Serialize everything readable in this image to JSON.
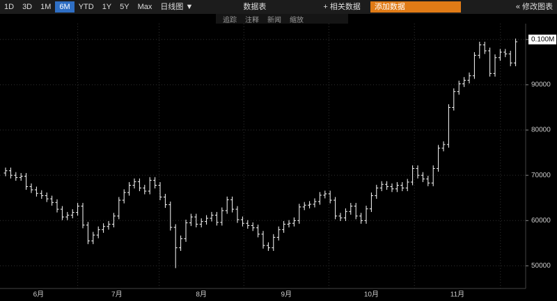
{
  "toolbar": {
    "ranges": [
      "1D",
      "3D",
      "1M",
      "6M",
      "YTD",
      "1Y",
      "5Y",
      "Max"
    ],
    "active_range": 3,
    "chart_style": "日线图 ▼",
    "table": "数据表",
    "related": "+ 相关数据",
    "add_data": "添加数据",
    "edit": "« 修改图表",
    "tools": [
      "追踪",
      "注释",
      "新闻",
      "缩放"
    ]
  },
  "chart_data": {
    "type": "ohlc",
    "color": "#ffffff",
    "open": [
      70500,
      71000,
      70000,
      69500,
      69800,
      67500,
      66800,
      66000,
      65500,
      64800,
      64000,
      62500,
      60800,
      61200,
      61800,
      63200,
      59000,
      55500,
      56800,
      58000,
      58700,
      59200,
      61000,
      64500,
      66200,
      67800,
      68600,
      67200,
      66500,
      68900,
      67800,
      65200,
      63500,
      58500,
      54000,
      56000,
      59500,
      60800,
      59200,
      59800,
      60500,
      61200,
      59600,
      62200,
      64600,
      62500,
      60200,
      59400,
      58900,
      58400,
      57000,
      54500,
      54000,
      56300,
      58000,
      59200,
      59400,
      60000,
      63000,
      63400,
      63600,
      64200,
      65600,
      65900,
      64500,
      61000,
      60600,
      62000,
      63200,
      61000,
      60000,
      62600,
      65500,
      67200,
      68000,
      67500,
      67000,
      67800,
      67200,
      68500,
      71500,
      70000,
      69200,
      68300,
      71500,
      76000,
      76800,
      85000,
      88500,
      90200,
      91000,
      92000,
      96500,
      98800,
      97500,
      92500,
      96000,
      97200,
      96800,
      94800
    ],
    "high": [
      71700,
      71700,
      70700,
      70500,
      70500,
      68200,
      67500,
      66700,
      66200,
      65500,
      64700,
      63200,
      61900,
      62500,
      63900,
      63900,
      59700,
      57500,
      58700,
      59400,
      59900,
      61700,
      65200,
      66900,
      68500,
      69300,
      69300,
      67900,
      69600,
      69600,
      68500,
      65900,
      64200,
      59200,
      56700,
      60200,
      61500,
      61500,
      60500,
      61200,
      61900,
      61900,
      62900,
      65300,
      65300,
      63200,
      60900,
      60100,
      59600,
      59100,
      57700,
      55200,
      57000,
      58700,
      59900,
      60100,
      60700,
      63700,
      64100,
      64300,
      64900,
      66300,
      66600,
      66600,
      65200,
      61700,
      62700,
      63900,
      63900,
      61700,
      63300,
      66200,
      67900,
      68700,
      68700,
      68200,
      68500,
      68500,
      69200,
      72200,
      72200,
      70700,
      69900,
      72200,
      76700,
      77500,
      85700,
      89200,
      90900,
      91700,
      92700,
      97200,
      99500,
      99500,
      98200,
      96700,
      97900,
      97900,
      97500,
      100200
    ],
    "low": [
      69800,
      69300,
      68800,
      68800,
      66800,
      66100,
      65300,
      64800,
      64100,
      63300,
      61800,
      60100,
      60100,
      60500,
      61100,
      58300,
      54800,
      54800,
      56100,
      57300,
      58000,
      58500,
      60300,
      63800,
      65500,
      67100,
      66500,
      65800,
      65800,
      67100,
      64500,
      62800,
      57800,
      49500,
      53300,
      55300,
      58800,
      58500,
      58500,
      59100,
      59800,
      58900,
      58900,
      61500,
      61800,
      59500,
      58700,
      58200,
      57700,
      56300,
      53800,
      53300,
      53300,
      55600,
      57300,
      58500,
      58700,
      59300,
      62300,
      62700,
      62900,
      63500,
      64900,
      63800,
      60300,
      59900,
      59900,
      61300,
      60300,
      59300,
      59300,
      61900,
      64800,
      66500,
      66800,
      66300,
      66300,
      66500,
      66500,
      67800,
      69300,
      68500,
      67600,
      67600,
      70800,
      75300,
      76100,
      84300,
      87800,
      89500,
      90300,
      91300,
      95800,
      96800,
      91800,
      91800,
      95300,
      96100,
      94100,
      94100
    ],
    "close": [
      71000,
      70000,
      69500,
      69800,
      67500,
      66800,
      66000,
      65500,
      64800,
      64000,
      62500,
      60800,
      61200,
      61800,
      63200,
      59000,
      55500,
      56800,
      58000,
      58700,
      59200,
      61000,
      64500,
      66200,
      67800,
      68600,
      67200,
      66500,
      68900,
      67800,
      65200,
      63500,
      58500,
      54000,
      56000,
      59500,
      60800,
      59200,
      59800,
      60500,
      61200,
      59600,
      62200,
      64600,
      62500,
      60200,
      59400,
      58900,
      58400,
      57000,
      54500,
      54000,
      56300,
      58000,
      59200,
      59400,
      60000,
      63000,
      63400,
      63600,
      64200,
      65600,
      65900,
      64500,
      61000,
      60600,
      62000,
      63200,
      61000,
      60000,
      62600,
      65500,
      67200,
      68000,
      67500,
      67000,
      67800,
      67200,
      68500,
      71500,
      70000,
      69200,
      68300,
      71500,
      76000,
      76800,
      85000,
      88500,
      90200,
      91000,
      92000,
      96500,
      98800,
      97500,
      92500,
      96000,
      97200,
      96800,
      94800,
      99500
    ],
    "ylim": [
      45000,
      103500
    ],
    "yticks": [
      50000,
      60000,
      70000,
      80000,
      90000,
      {
        "value": 100000,
        "label": "0.100M"
      }
    ],
    "xticks": [
      {
        "value": 6.4,
        "label": "6月"
      },
      {
        "value": 21.6,
        "label": "7月"
      },
      {
        "value": 38,
        "label": "8月"
      },
      {
        "value": 54.5,
        "label": "9月"
      },
      {
        "value": 71,
        "label": "10月"
      },
      {
        "value": 87.7,
        "label": "11月"
      }
    ],
    "grid": true
  }
}
